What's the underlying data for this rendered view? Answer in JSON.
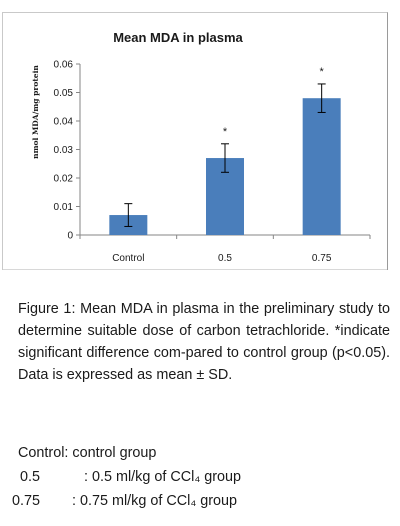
{
  "chart_data": {
    "type": "bar",
    "title": "Mean MDA in plasma",
    "ylabel": "nmol MDA/mg protein",
    "xlabel": "",
    "categories": [
      "Control",
      "0.5",
      "0.75"
    ],
    "series": [
      {
        "values": [
          0.007,
          0.027,
          0.048
        ],
        "error": [
          0.004,
          0.005,
          0.005
        ],
        "significance": [
          "",
          "*",
          "*"
        ]
      }
    ],
    "ylim": [
      0,
      0.06
    ],
    "yticks": [
      "0",
      "0.01",
      "0.02",
      "0.03",
      "0.04",
      "0.05",
      "0.06"
    ],
    "grid": false,
    "legend": "none",
    "bar_color": "#4a7ebb",
    "error_bar_color": "#000000"
  },
  "caption": "Figure 1: Mean MDA in plasma in the preliminary study to determine suitable dose of carbon tetrachloride. *indicate significant difference com-pared to control group (p<0.05). Data is expressed as mean ± SD.",
  "legend_notes": [
    "Control: control group",
    "0.5           : 0.5 ml/kg of CCl₄ group",
    "0.75        : 0.75 ml/kg of CCl₄ group"
  ]
}
